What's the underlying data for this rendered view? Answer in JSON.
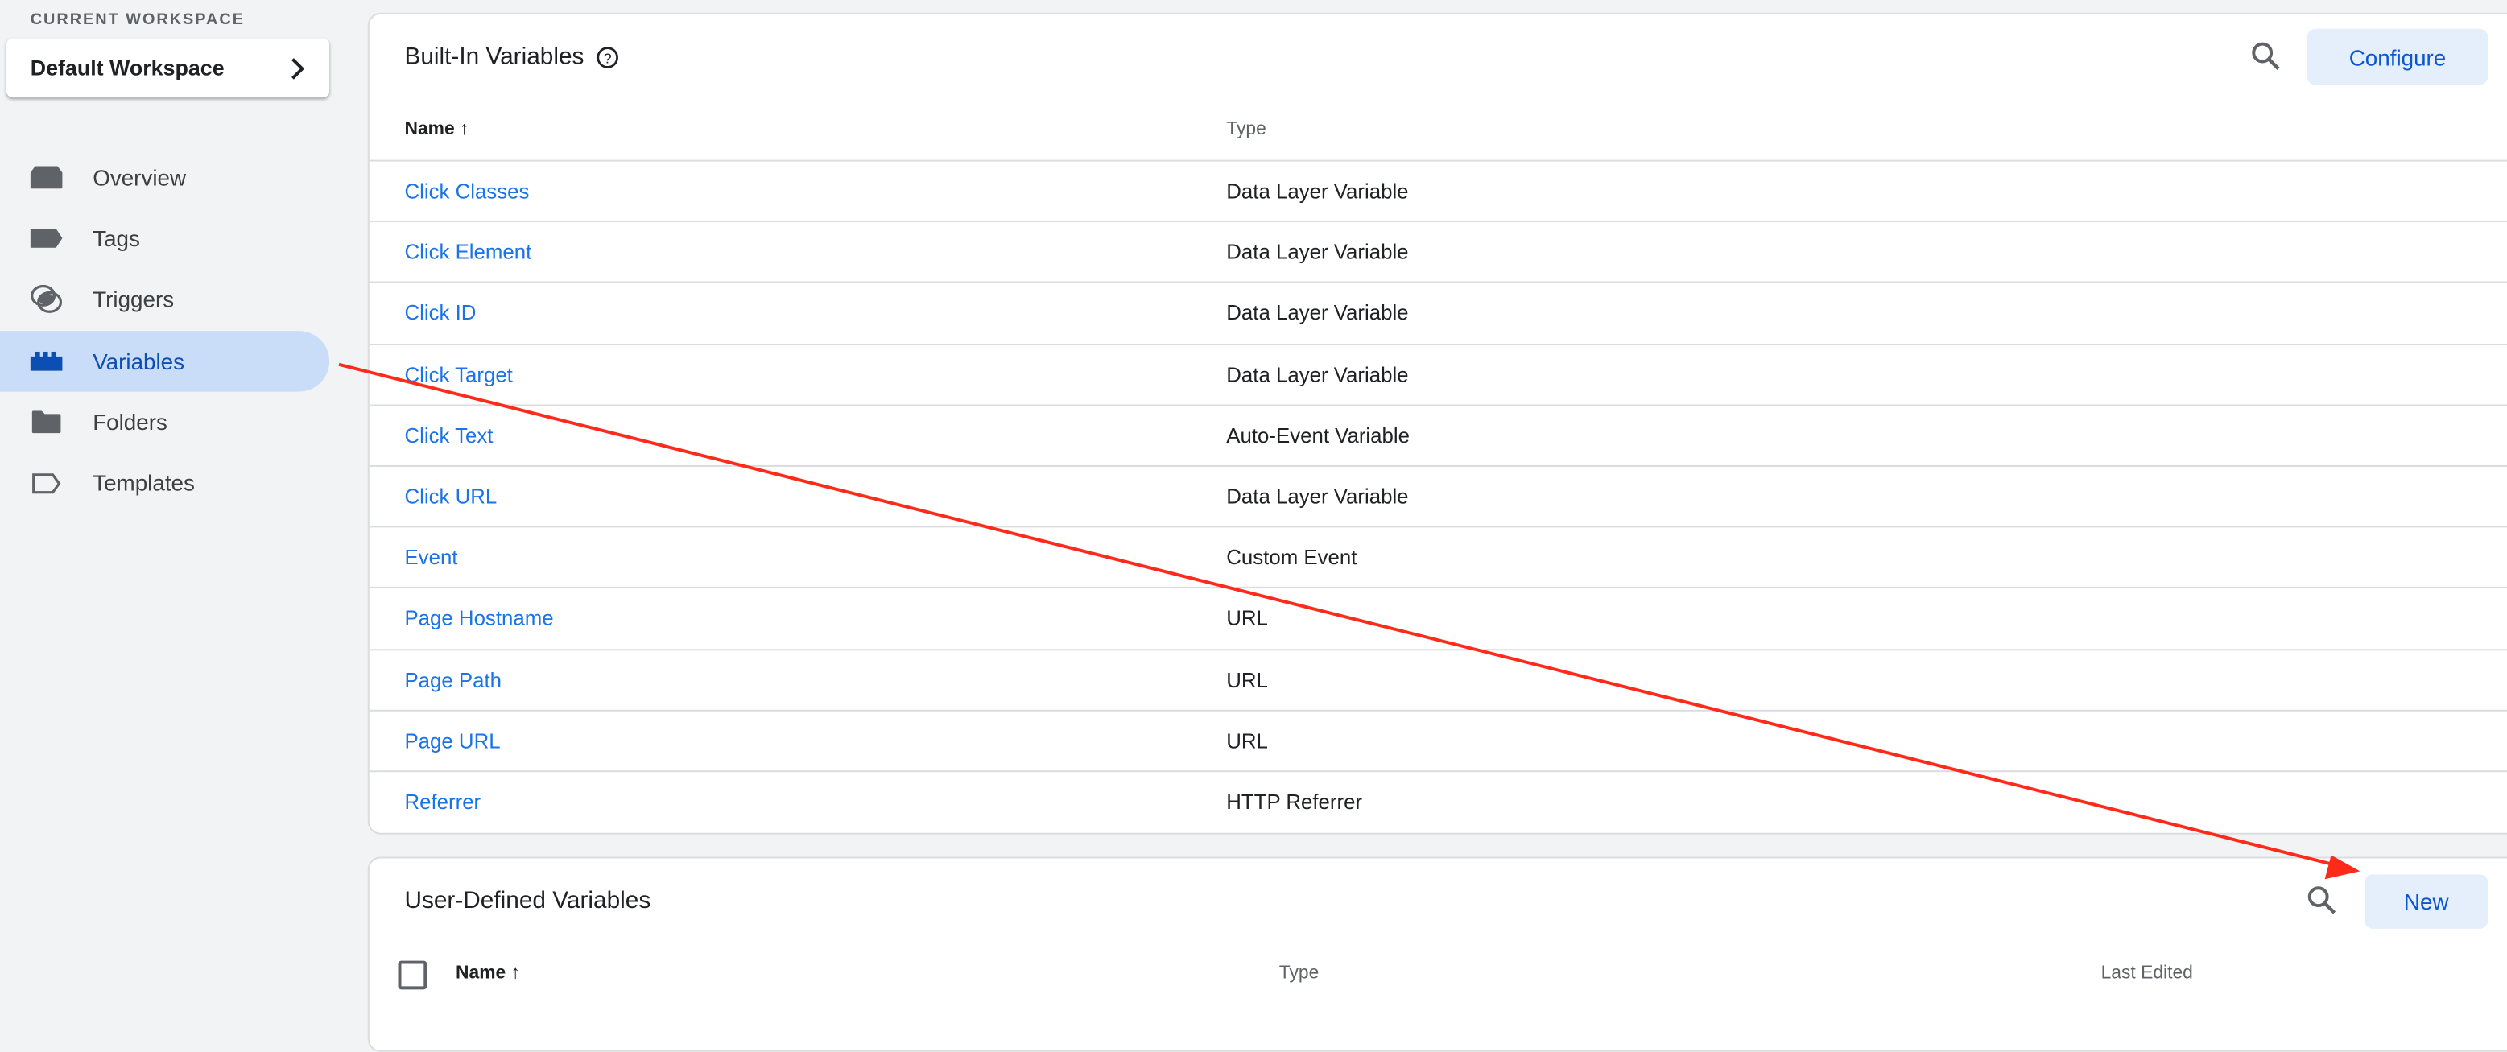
{
  "sidebar": {
    "workspace_label": "CURRENT WORKSPACE",
    "workspace_name": "Default Workspace",
    "items": [
      {
        "label": "Overview",
        "icon": "overview-icon"
      },
      {
        "label": "Tags",
        "icon": "tag-icon"
      },
      {
        "label": "Triggers",
        "icon": "trigger-icon"
      },
      {
        "label": "Variables",
        "icon": "variables-icon",
        "active": true
      },
      {
        "label": "Folders",
        "icon": "folder-icon"
      },
      {
        "label": "Templates",
        "icon": "template-icon"
      }
    ]
  },
  "builtin": {
    "title": "Built-In Variables",
    "configure_label": "Configure",
    "columns": {
      "name": "Name",
      "type": "Type"
    },
    "rows": [
      {
        "name": "Click Classes",
        "type": "Data Layer Variable"
      },
      {
        "name": "Click Element",
        "type": "Data Layer Variable"
      },
      {
        "name": "Click ID",
        "type": "Data Layer Variable"
      },
      {
        "name": "Click Target",
        "type": "Data Layer Variable"
      },
      {
        "name": "Click Text",
        "type": "Auto-Event Variable"
      },
      {
        "name": "Click URL",
        "type": "Data Layer Variable"
      },
      {
        "name": "Event",
        "type": "Custom Event"
      },
      {
        "name": "Page Hostname",
        "type": "URL"
      },
      {
        "name": "Page Path",
        "type": "URL"
      },
      {
        "name": "Page URL",
        "type": "URL"
      },
      {
        "name": "Referrer",
        "type": "HTTP Referrer"
      }
    ]
  },
  "userdefined": {
    "title": "User-Defined Variables",
    "new_label": "New",
    "columns": {
      "name": "Name",
      "type": "Type",
      "last_edited": "Last Edited"
    }
  },
  "colors": {
    "accent": "#0b57d0",
    "link": "#1a73e8",
    "active_bg": "#c9ddf8",
    "annotation_arrow": "#ff2a1a"
  }
}
